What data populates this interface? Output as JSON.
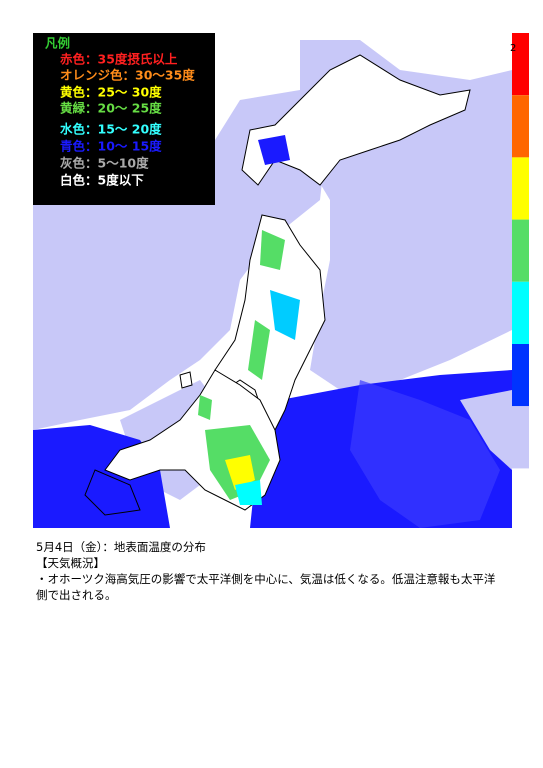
{
  "map": {
    "legend": {
      "title": "凡例",
      "title_color": "#33cc33",
      "items": [
        {
          "label": "赤色：35度摂氏以上",
          "color": "#ff2020"
        },
        {
          "label": "オレンジ色：30～35度",
          "color": "#ff8c1a"
        },
        {
          "label": "黄色：25～ 30度",
          "color": "#ffff00"
        },
        {
          "label": "黄緑：20～ 25度",
          "color": "#66dd44"
        },
        {
          "label": "水色：15～ 20度",
          "color": "#33ffff"
        },
        {
          "label": "青色：10～ 15度",
          "color": "#1a1aff"
        },
        {
          "label": "灰色：5～10度",
          "color": "#aaaaaa"
        },
        {
          "label": "白色：5度以下",
          "color": "#ffffff"
        }
      ]
    },
    "colorbar": {
      "label": "2",
      "colors": [
        "#ff0000",
        "#ff6600",
        "#ffff00",
        "#55dd66",
        "#00ffff",
        "#0033ff",
        "#c8c8f8"
      ]
    },
    "caption": {
      "date": "5月4日（金）：地表面温度の分布",
      "heading": "【天気概況】",
      "text": "・オホーツク海高気圧の影響で太平洋側を中心に、気温は低くなる。低温注意報も太平洋側で出される。"
    }
  }
}
